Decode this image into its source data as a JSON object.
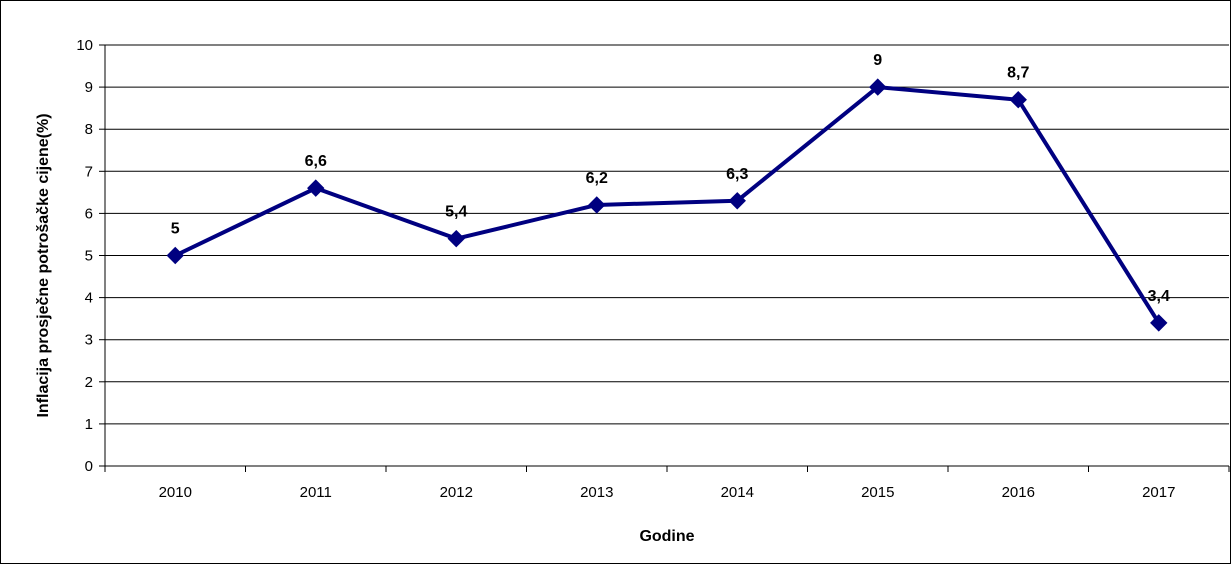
{
  "chart_data": {
    "type": "line",
    "title": "",
    "xlabel": "Godine",
    "ylabel": "Inflacija prosječne potrošačke cijene(%)",
    "categories": [
      "2010",
      "2011",
      "2012",
      "2013",
      "2014",
      "2015",
      "2016",
      "2017"
    ],
    "series": [
      {
        "values": [
          5,
          6.6,
          5.4,
          6.2,
          6.3,
          9,
          8.7,
          3.4
        ],
        "data_labels": [
          "5",
          "6,6",
          "5,4",
          "6,2",
          "6,3",
          "9",
          "8,7",
          "3,4"
        ]
      }
    ],
    "ylim": [
      0,
      10
    ],
    "yticks": [
      0,
      1,
      2,
      3,
      4,
      5,
      6,
      7,
      8,
      9,
      10
    ],
    "grid": true,
    "legend": "none",
    "colors": {
      "line": "#000080",
      "marker": "#000080",
      "grid": "#000000",
      "text": "#000000"
    }
  }
}
